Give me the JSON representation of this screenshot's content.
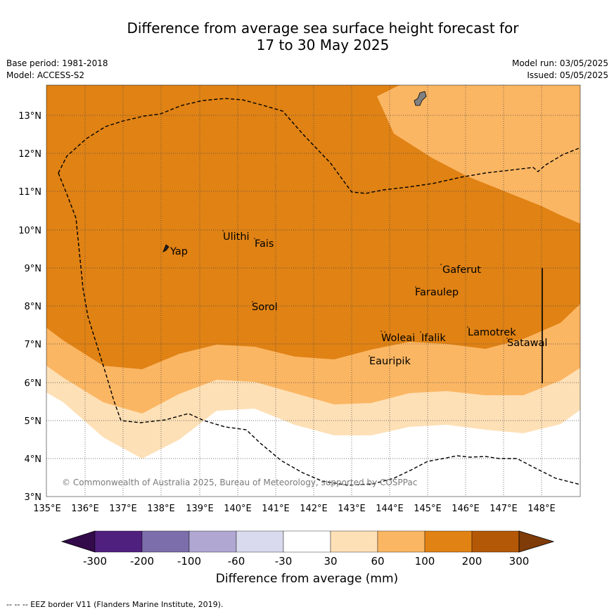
{
  "title_line1": "Difference from average sea surface height forecast for",
  "title_line2": "17 to 30 May 2025",
  "meta": {
    "base_period": "Base period: 1981-2018",
    "model": "Model: ACCESS-S2",
    "model_run": "Model run: 03/05/2025",
    "issued": "Issued: 05/05/2025"
  },
  "copyright": "© Commonwealth of Australia 2025, Bureau of Meteorology, supported by COSPPac",
  "lat_ticks": [
    "13°N",
    "12°N",
    "11°N",
    "10°N",
    "9°N",
    "8°N",
    "7°N",
    "6°N",
    "5°N",
    "4°N",
    "3°N"
  ],
  "lon_ticks": [
    "135°E",
    "136°E",
    "137°E",
    "138°E",
    "139°E",
    "140°E",
    "141°E",
    "142°E",
    "143°E",
    "144°E",
    "145°E",
    "146°E",
    "147°E",
    "148°E"
  ],
  "places": [
    "Yap",
    "Ulithi",
    "Fais",
    "Gaferut",
    "Faraulep",
    "Sorol",
    "Woleai",
    "Ifalik",
    "Lamotrek",
    "Satawal",
    "Eauripik"
  ],
  "legend": {
    "ticks": [
      "-300",
      "-200",
      "-100",
      "-60",
      "-30",
      "30",
      "60",
      "100",
      "200",
      "300"
    ],
    "colors": [
      "#330a4a",
      "#50207f",
      "#7c6eab",
      "#b0a8d3",
      "#dadaee",
      "#ffffff",
      "#fee0b6",
      "#fbb663",
      "#e08214",
      "#b35806",
      "#7f3b08"
    ],
    "label": "Difference from average (mm)"
  },
  "footer": "--  --  -- EEZ border V11 (Flanders Marine Institute, 2019)."
}
